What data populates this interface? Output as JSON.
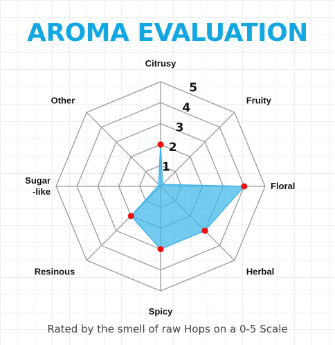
{
  "colors": {
    "title": "#12a7e0",
    "fill": "#3fb7ea",
    "point": "#ee1111",
    "web": "#999999"
  },
  "chart_data": {
    "type": "radar",
    "title": "AROMA EVALUATION",
    "subtitle": "Rated by the smell of raw Hops on a 0-5 Scale",
    "axes": [
      "Citrusy",
      "Fruity",
      "Floral",
      "Herbal",
      "Spicy",
      "Resinous",
      "Sugar\n-like",
      "Other"
    ],
    "ring_labels": [
      "1",
      "2",
      "3",
      "4",
      "5"
    ],
    "range": [
      0,
      5
    ],
    "values": [
      2,
      0,
      4,
      3,
      3,
      2,
      0,
      0
    ]
  }
}
